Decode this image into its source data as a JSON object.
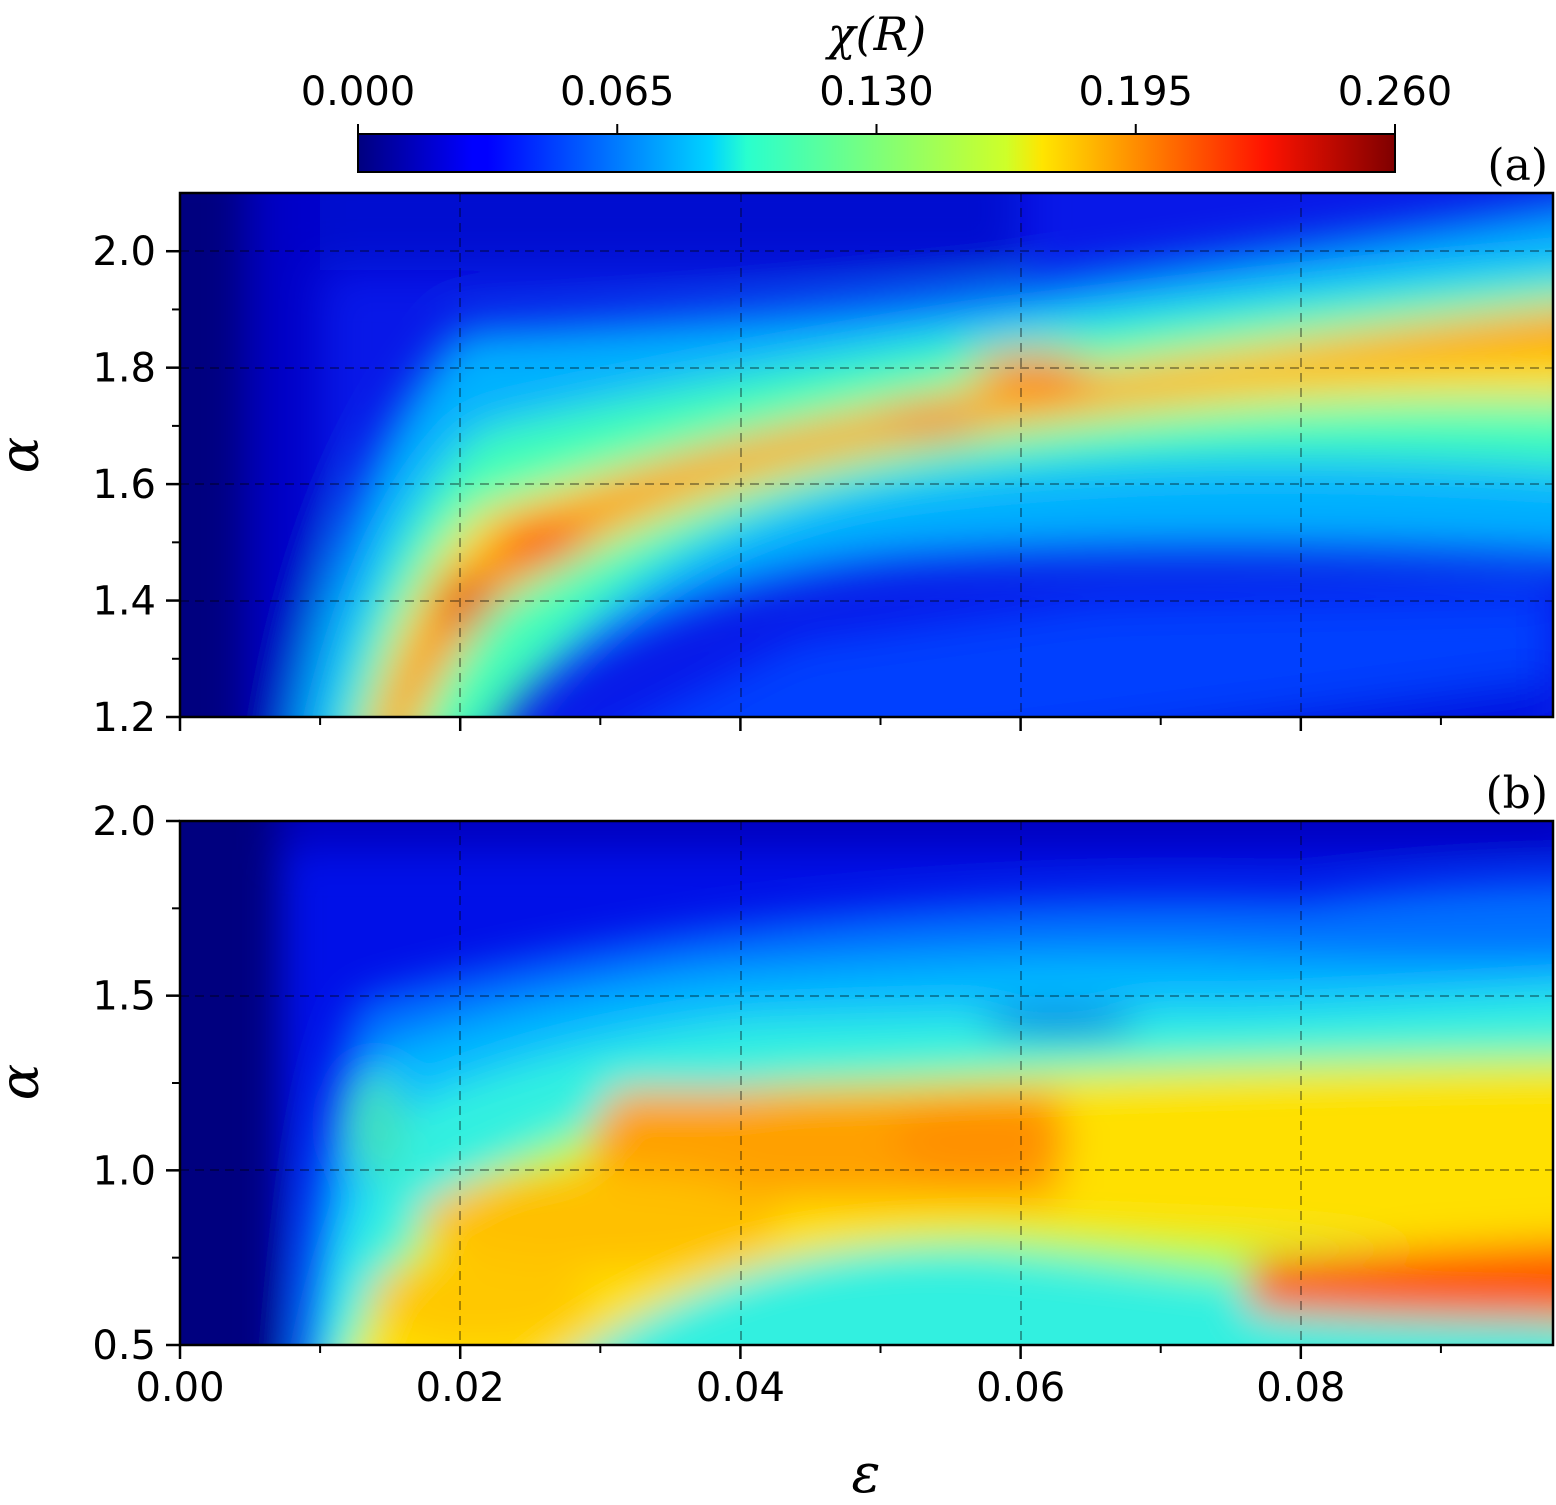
{
  "colorbar": {
    "title": "χ(R)",
    "ticks": [
      "0.000",
      "0.065",
      "0.130",
      "0.195",
      "0.260"
    ],
    "range": [
      0.0,
      0.26
    ],
    "colormap": "jet"
  },
  "x_axis": {
    "label": "ε",
    "range": [
      0.0,
      0.098
    ],
    "ticks": [
      "0.00",
      "0.02",
      "0.04",
      "0.06",
      "0.08"
    ]
  },
  "chart_data": [
    {
      "type": "heatmap",
      "panel_label": "(a)",
      "xlabel": "ε",
      "ylabel": "α",
      "xlim": [
        0.0,
        0.098
      ],
      "ylim": [
        1.2,
        2.1
      ],
      "yticks": [
        "1.2",
        "1.4",
        "1.6",
        "1.8",
        "2.0"
      ],
      "grid": true,
      "ridge": [
        {
          "eps": 0.014,
          "alpha": 1.2,
          "chi": 0.2
        },
        {
          "eps": 0.017,
          "alpha": 1.3,
          "chi": 0.21
        },
        {
          "eps": 0.02,
          "alpha": 1.4,
          "chi": 0.245
        },
        {
          "eps": 0.026,
          "alpha": 1.5,
          "chi": 0.225
        },
        {
          "eps": 0.035,
          "alpha": 1.6,
          "chi": 0.215
        },
        {
          "eps": 0.045,
          "alpha": 1.68,
          "chi": 0.205
        },
        {
          "eps": 0.054,
          "alpha": 1.72,
          "chi": 0.21
        },
        {
          "eps": 0.062,
          "alpha": 1.79,
          "chi": 0.21
        },
        {
          "eps": 0.072,
          "alpha": 1.8,
          "chi": 0.205
        },
        {
          "eps": 0.082,
          "alpha": 1.87,
          "chi": 0.19
        },
        {
          "eps": 0.095,
          "alpha": 1.9,
          "chi": 0.185
        }
      ]
    },
    {
      "type": "heatmap",
      "panel_label": "(b)",
      "xlabel": "ε",
      "ylabel": "α",
      "xlim": [
        0.0,
        0.098
      ],
      "ylim": [
        0.5,
        2.0
      ],
      "yticks": [
        "0.5",
        "1.0",
        "1.5",
        "2.0"
      ],
      "grid": true,
      "bands": [
        {
          "alpha_range": [
            1.0,
            1.22
          ],
          "eps_range": [
            0.03,
            0.065
          ],
          "chi": 0.195
        },
        {
          "alpha_range": [
            0.6,
            0.95
          ],
          "eps_range": [
            0.015,
            0.05
          ],
          "chi": 0.175
        },
        {
          "alpha_range": [
            1.25,
            1.4
          ],
          "eps_range": [
            0.08,
            0.098
          ],
          "chi": 0.21
        },
        {
          "alpha_range": [
            1.38,
            1.42
          ],
          "eps_range": [
            0.06,
            0.07
          ],
          "chi": 0.06
        }
      ]
    }
  ]
}
